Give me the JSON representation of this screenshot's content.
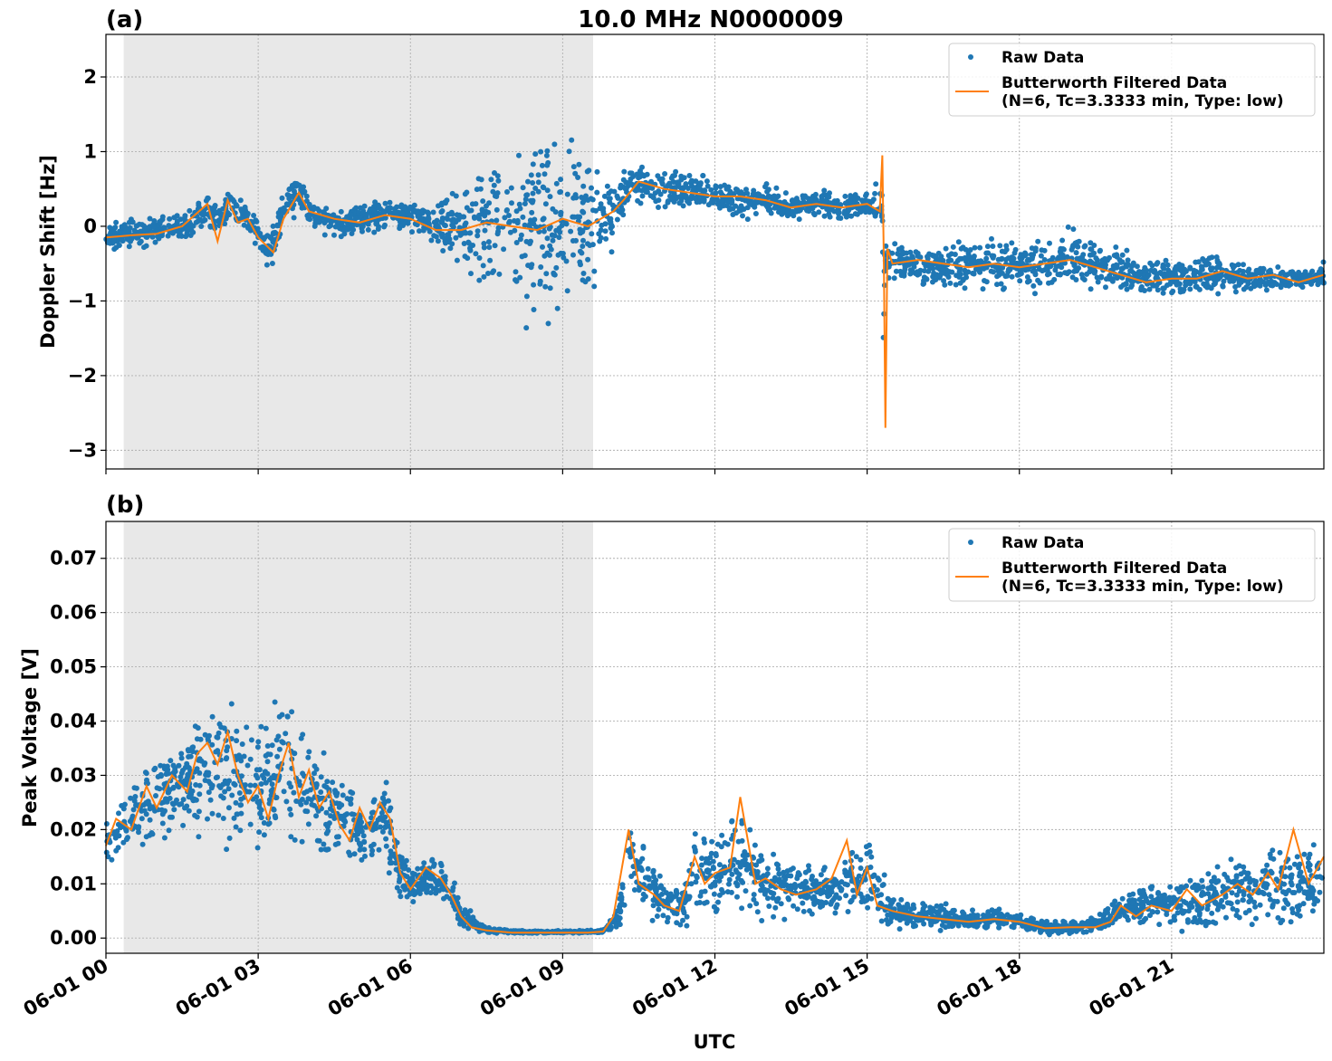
{
  "figure": {
    "title": "10.0 MHz N0000009",
    "xlabel": "UTC",
    "x_ticks": [
      "06-01 00",
      "06-01 03",
      "06-01 06",
      "06-01 09",
      "06-01 12",
      "06-01 15",
      "06-01 18",
      "06-01 21"
    ]
  },
  "colors": {
    "raw": "#1f77b4",
    "filtered": "#ff7f0e",
    "shade": "#e8e8e8",
    "grid": "#b0b0b0"
  },
  "chart_data": [
    {
      "type": "scatter",
      "panel": "(a)",
      "ylabel": "Doppler Shift [Hz]",
      "xlim_hours": [
        0,
        24
      ],
      "ylim": [
        -3.25,
        2.57
      ],
      "y_ticks": [
        2,
        1,
        0,
        -1,
        -2,
        -3
      ],
      "y_tick_labels": [
        "2",
        "1",
        "0",
        "−1",
        "−2",
        "−3"
      ],
      "shaded_interval_hours": [
        0.35,
        9.6
      ],
      "grid": true,
      "legend": {
        "placement": "upper right",
        "raw_label": "Raw Data",
        "filtered_label_line1": "Butterworth Filtered Data",
        "filtered_label_line2": "(N=6, Tc=3.3333 min, Type: low)"
      },
      "series": [
        {
          "name": "Raw Data",
          "x_hours": [
            0.0,
            0.5,
            1.0,
            1.5,
            2.0,
            2.2,
            2.5,
            3.0,
            3.2,
            3.5,
            3.8,
            4.0,
            4.5,
            5.0,
            5.5,
            6.0,
            6.5,
            7.0,
            7.5,
            8.0,
            8.5,
            9.0,
            9.5,
            10.0,
            10.3,
            10.6,
            11.0,
            11.5,
            12.0,
            12.5,
            13.0,
            13.5,
            14.0,
            14.5,
            15.0,
            15.3,
            15.32,
            15.35,
            15.4,
            15.5,
            16.0,
            16.5,
            17.0,
            17.5,
            18.0,
            18.5,
            19.0,
            19.5,
            20.0,
            20.5,
            21.0,
            21.5,
            22.0,
            22.5,
            23.0,
            23.5,
            24.0
          ],
          "center": [
            -0.15,
            -0.1,
            -0.05,
            0.0,
            0.2,
            0.1,
            0.3,
            -0.1,
            -0.4,
            0.2,
            0.45,
            0.2,
            0.05,
            0.1,
            0.15,
            0.15,
            0.0,
            -0.05,
            0.05,
            0.1,
            0.05,
            0.0,
            0.05,
            0.1,
            0.6,
            0.55,
            0.5,
            0.5,
            0.4,
            0.35,
            0.35,
            0.25,
            0.3,
            0.25,
            0.3,
            0.3,
            -1.5,
            -0.4,
            -0.45,
            -0.5,
            -0.5,
            -0.55,
            -0.5,
            -0.5,
            -0.55,
            -0.55,
            -0.45,
            -0.5,
            -0.6,
            -0.7,
            -0.7,
            -0.65,
            -0.65,
            -0.7,
            -0.7,
            -0.7,
            -0.65
          ],
          "spread": [
            0.25,
            0.25,
            0.25,
            0.25,
            0.3,
            0.3,
            0.3,
            0.3,
            0.3,
            0.3,
            0.35,
            0.25,
            0.25,
            0.25,
            0.25,
            0.25,
            0.35,
            0.8,
            1.2,
            1.5,
            1.6,
            1.5,
            1.3,
            0.5,
            0.35,
            0.3,
            0.35,
            0.3,
            0.25,
            0.3,
            0.25,
            0.25,
            0.25,
            0.2,
            0.2,
            0.5,
            1.5,
            0.3,
            0.3,
            0.35,
            0.35,
            0.35,
            0.4,
            0.4,
            0.45,
            0.5,
            0.5,
            0.4,
            0.35,
            0.3,
            0.3,
            0.3,
            0.3,
            0.25,
            0.25,
            0.2,
            0.2
          ]
        },
        {
          "name": "Butterworth Filtered Data",
          "x_hours": [
            0.0,
            0.5,
            1.0,
            1.5,
            2.0,
            2.2,
            2.4,
            2.6,
            2.8,
            3.0,
            3.3,
            3.5,
            3.8,
            4.0,
            4.5,
            5.0,
            5.5,
            6.0,
            6.5,
            7.0,
            7.5,
            8.0,
            8.5,
            9.0,
            9.5,
            10.0,
            10.2,
            10.5,
            11.0,
            11.5,
            12.0,
            12.5,
            13.0,
            13.5,
            14.0,
            14.5,
            15.0,
            15.25,
            15.3,
            15.33,
            15.36,
            15.4,
            15.5,
            16.0,
            16.5,
            17.0,
            17.5,
            18.0,
            18.5,
            19.0,
            19.5,
            20.0,
            20.5,
            21.0,
            21.5,
            22.0,
            22.5,
            23.0,
            23.5,
            24.0
          ],
          "y": [
            -0.15,
            -0.12,
            -0.1,
            0.0,
            0.3,
            -0.2,
            0.35,
            0.05,
            0.1,
            -0.15,
            -0.35,
            0.1,
            0.45,
            0.2,
            0.1,
            0.05,
            0.15,
            0.1,
            -0.05,
            -0.05,
            0.05,
            0.0,
            -0.05,
            0.1,
            0.0,
            0.2,
            0.35,
            0.6,
            0.5,
            0.45,
            0.4,
            0.4,
            0.35,
            0.25,
            0.3,
            0.25,
            0.3,
            0.2,
            0.95,
            -0.5,
            -2.7,
            -0.3,
            -0.5,
            -0.45,
            -0.5,
            -0.55,
            -0.5,
            -0.55,
            -0.5,
            -0.45,
            -0.55,
            -0.65,
            -0.75,
            -0.7,
            -0.7,
            -0.6,
            -0.7,
            -0.65,
            -0.75,
            -0.65
          ]
        }
      ]
    },
    {
      "type": "scatter",
      "panel": "(b)",
      "ylabel": "Peak Voltage [V]",
      "xlim_hours": [
        0,
        24
      ],
      "ylim": [
        -0.0028,
        0.0768
      ],
      "y_ticks": [
        0.07,
        0.06,
        0.05,
        0.04,
        0.03,
        0.02,
        0.01,
        0.0
      ],
      "y_tick_labels": [
        "0.07",
        "0.06",
        "0.05",
        "0.04",
        "0.03",
        "0.02",
        "0.01",
        "0.00"
      ],
      "shaded_interval_hours": [
        0.35,
        9.6
      ],
      "grid": true,
      "legend": {
        "placement": "upper right",
        "raw_label": "Raw Data",
        "filtered_label_line1": "Butterworth Filtered Data",
        "filtered_label_line2": "(N=6, Tc=3.3333 min, Type: low)"
      },
      "series": [
        {
          "name": "Raw Data",
          "x_hours": [
            0.0,
            0.5,
            1.0,
            1.5,
            2.0,
            2.5,
            3.0,
            3.5,
            4.0,
            4.5,
            5.0,
            5.5,
            5.8,
            6.0,
            6.5,
            6.8,
            7.0,
            7.5,
            8.0,
            8.5,
            9.0,
            9.5,
            9.8,
            10.1,
            10.3,
            10.6,
            11.0,
            11.4,
            11.6,
            12.0,
            12.5,
            13.0,
            13.5,
            14.0,
            14.5,
            15.0,
            15.5,
            16.0,
            16.5,
            17.0,
            17.5,
            18.0,
            18.5,
            19.0,
            19.5,
            20.0,
            20.5,
            21.0,
            21.5,
            22.0,
            22.5,
            23.0,
            23.5,
            24.0
          ],
          "center": [
            0.018,
            0.021,
            0.026,
            0.028,
            0.032,
            0.03,
            0.028,
            0.032,
            0.027,
            0.023,
            0.02,
            0.022,
            0.012,
            0.01,
            0.011,
            0.009,
            0.004,
            0.0015,
            0.0012,
            0.0011,
            0.0011,
            0.0012,
            0.0012,
            0.004,
            0.015,
            0.01,
            0.007,
            0.006,
            0.013,
            0.011,
            0.014,
            0.01,
            0.009,
            0.008,
            0.01,
            0.011,
            0.005,
            0.004,
            0.004,
            0.0035,
            0.0035,
            0.003,
            0.002,
            0.002,
            0.0025,
            0.005,
            0.006,
            0.006,
            0.007,
            0.008,
            0.009,
            0.01,
            0.01,
            0.012
          ],
          "spread": [
            0.006,
            0.008,
            0.009,
            0.012,
            0.015,
            0.015,
            0.013,
            0.016,
            0.013,
            0.011,
            0.01,
            0.012,
            0.006,
            0.005,
            0.006,
            0.004,
            0.003,
            0.0008,
            0.0004,
            0.0003,
            0.0003,
            0.0003,
            0.0004,
            0.003,
            0.01,
            0.008,
            0.006,
            0.005,
            0.01,
            0.009,
            0.012,
            0.009,
            0.007,
            0.006,
            0.008,
            0.009,
            0.004,
            0.003,
            0.003,
            0.002,
            0.002,
            0.002,
            0.0015,
            0.0015,
            0.002,
            0.004,
            0.005,
            0.006,
            0.006,
            0.007,
            0.008,
            0.009,
            0.009,
            0.009
          ]
        },
        {
          "name": "Butterworth Filtered Data",
          "x_hours": [
            0.0,
            0.2,
            0.5,
            0.8,
            1.0,
            1.3,
            1.6,
            1.8,
            2.0,
            2.2,
            2.4,
            2.6,
            2.8,
            3.0,
            3.2,
            3.4,
            3.6,
            3.8,
            4.0,
            4.2,
            4.4,
            4.6,
            4.8,
            5.0,
            5.2,
            5.4,
            5.6,
            5.8,
            6.0,
            6.3,
            6.6,
            6.8,
            7.0,
            7.2,
            7.5,
            8.0,
            8.5,
            9.0,
            9.5,
            9.8,
            10.0,
            10.3,
            10.5,
            10.8,
            11.0,
            11.3,
            11.6,
            11.8,
            12.0,
            12.3,
            12.5,
            12.8,
            13.0,
            13.3,
            13.6,
            14.0,
            14.3,
            14.6,
            14.8,
            15.0,
            15.2,
            15.5,
            16.0,
            16.5,
            17.0,
            17.5,
            18.0,
            18.5,
            19.0,
            19.5,
            19.8,
            20.0,
            20.3,
            20.6,
            21.0,
            21.3,
            21.6,
            22.0,
            22.3,
            22.6,
            22.9,
            23.1,
            23.4,
            23.7,
            24.0
          ],
          "y": [
            0.017,
            0.022,
            0.02,
            0.028,
            0.024,
            0.03,
            0.027,
            0.034,
            0.036,
            0.032,
            0.038,
            0.03,
            0.025,
            0.028,
            0.022,
            0.03,
            0.036,
            0.026,
            0.031,
            0.024,
            0.027,
            0.021,
            0.018,
            0.024,
            0.02,
            0.025,
            0.022,
            0.012,
            0.009,
            0.013,
            0.011,
            0.008,
            0.004,
            0.002,
            0.0014,
            0.001,
            0.001,
            0.001,
            0.001,
            0.0012,
            0.004,
            0.02,
            0.01,
            0.008,
            0.006,
            0.005,
            0.015,
            0.01,
            0.012,
            0.013,
            0.026,
            0.01,
            0.011,
            0.009,
            0.008,
            0.009,
            0.011,
            0.018,
            0.008,
            0.013,
            0.006,
            0.005,
            0.004,
            0.0035,
            0.003,
            0.0035,
            0.003,
            0.0018,
            0.002,
            0.002,
            0.003,
            0.006,
            0.004,
            0.006,
            0.005,
            0.009,
            0.006,
            0.008,
            0.01,
            0.008,
            0.012,
            0.009,
            0.02,
            0.01,
            0.015
          ]
        }
      ]
    }
  ]
}
